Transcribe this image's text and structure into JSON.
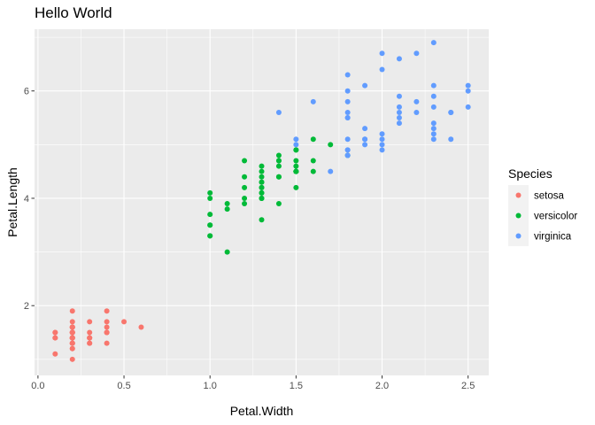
{
  "chart_data": {
    "type": "scatter",
    "title": "Hello World",
    "xlabel": "Petal.Width",
    "ylabel": "Petal.Length",
    "xlim": [
      -0.02,
      2.62
    ],
    "ylim": [
      0.7,
      7.15
    ],
    "x_ticks": [
      0.0,
      0.5,
      1.0,
      1.5,
      2.0,
      2.5
    ],
    "x_tick_labels": [
      "0.0",
      "0.5",
      "1.0",
      "1.5",
      "2.0",
      "2.5"
    ],
    "y_ticks": [
      2,
      4,
      6
    ],
    "y_tick_labels": [
      "2",
      "4",
      "6"
    ],
    "grid": true,
    "panel_background": "#ebebeb",
    "legend": {
      "title": "Species",
      "position": "right"
    },
    "series": [
      {
        "name": "setosa",
        "color": "#F8766D",
        "points": [
          [
            0.2,
            1.4
          ],
          [
            0.2,
            1.4
          ],
          [
            0.2,
            1.3
          ],
          [
            0.2,
            1.5
          ],
          [
            0.2,
            1.4
          ],
          [
            0.4,
            1.7
          ],
          [
            0.3,
            1.4
          ],
          [
            0.2,
            1.5
          ],
          [
            0.2,
            1.4
          ],
          [
            0.1,
            1.5
          ],
          [
            0.2,
            1.5
          ],
          [
            0.2,
            1.6
          ],
          [
            0.1,
            1.4
          ],
          [
            0.1,
            1.1
          ],
          [
            0.2,
            1.2
          ],
          [
            0.4,
            1.5
          ],
          [
            0.4,
            1.3
          ],
          [
            0.3,
            1.4
          ],
          [
            0.3,
            1.7
          ],
          [
            0.3,
            1.5
          ],
          [
            0.2,
            1.7
          ],
          [
            0.4,
            1.5
          ],
          [
            0.2,
            1.0
          ],
          [
            0.5,
            1.7
          ],
          [
            0.2,
            1.9
          ],
          [
            0.2,
            1.6
          ],
          [
            0.4,
            1.6
          ],
          [
            0.2,
            1.5
          ],
          [
            0.2,
            1.4
          ],
          [
            0.2,
            1.6
          ],
          [
            0.2,
            1.6
          ],
          [
            0.4,
            1.5
          ],
          [
            0.1,
            1.5
          ],
          [
            0.2,
            1.4
          ],
          [
            0.2,
            1.5
          ],
          [
            0.2,
            1.2
          ],
          [
            0.2,
            1.3
          ],
          [
            0.1,
            1.4
          ],
          [
            0.2,
            1.3
          ],
          [
            0.2,
            1.5
          ],
          [
            0.3,
            1.3
          ],
          [
            0.3,
            1.3
          ],
          [
            0.2,
            1.3
          ],
          [
            0.6,
            1.6
          ],
          [
            0.4,
            1.9
          ],
          [
            0.3,
            1.4
          ],
          [
            0.2,
            1.6
          ],
          [
            0.2,
            1.4
          ],
          [
            0.2,
            1.5
          ],
          [
            0.2,
            1.4
          ]
        ]
      },
      {
        "name": "versicolor",
        "color": "#00BA38",
        "points": [
          [
            1.4,
            4.7
          ],
          [
            1.5,
            4.5
          ],
          [
            1.5,
            4.9
          ],
          [
            1.3,
            4.0
          ],
          [
            1.5,
            4.6
          ],
          [
            1.3,
            4.5
          ],
          [
            1.6,
            4.7
          ],
          [
            1.0,
            3.3
          ],
          [
            1.3,
            4.6
          ],
          [
            1.4,
            3.9
          ],
          [
            1.0,
            3.5
          ],
          [
            1.5,
            4.2
          ],
          [
            1.0,
            4.0
          ],
          [
            1.4,
            4.7
          ],
          [
            1.3,
            3.6
          ],
          [
            1.4,
            4.4
          ],
          [
            1.5,
            4.5
          ],
          [
            1.0,
            4.1
          ],
          [
            1.5,
            4.5
          ],
          [
            1.1,
            3.9
          ],
          [
            1.8,
            4.8
          ],
          [
            1.3,
            4.0
          ],
          [
            1.5,
            4.9
          ],
          [
            1.2,
            4.7
          ],
          [
            1.3,
            4.3
          ],
          [
            1.4,
            4.4
          ],
          [
            1.4,
            4.8
          ],
          [
            1.7,
            5.0
          ],
          [
            1.5,
            4.5
          ],
          [
            1.0,
            3.5
          ],
          [
            1.1,
            3.8
          ],
          [
            1.0,
            3.7
          ],
          [
            1.2,
            3.9
          ],
          [
            1.6,
            5.1
          ],
          [
            1.5,
            4.5
          ],
          [
            1.6,
            4.5
          ],
          [
            1.5,
            4.7
          ],
          [
            1.3,
            4.4
          ],
          [
            1.3,
            4.1
          ],
          [
            1.3,
            4.0
          ],
          [
            1.2,
            4.4
          ],
          [
            1.4,
            4.6
          ],
          [
            1.2,
            4.0
          ],
          [
            1.0,
            3.3
          ],
          [
            1.3,
            4.2
          ],
          [
            1.2,
            4.2
          ],
          [
            1.3,
            4.2
          ],
          [
            1.3,
            4.3
          ],
          [
            1.1,
            3.0
          ],
          [
            1.3,
            4.1
          ]
        ]
      },
      {
        "name": "virginica",
        "color": "#619CFF",
        "points": [
          [
            2.5,
            6.0
          ],
          [
            1.9,
            5.1
          ],
          [
            2.1,
            5.9
          ],
          [
            1.8,
            5.6
          ],
          [
            2.2,
            5.8
          ],
          [
            2.1,
            6.6
          ],
          [
            1.7,
            4.5
          ],
          [
            1.8,
            6.3
          ],
          [
            1.8,
            5.8
          ],
          [
            2.5,
            6.1
          ],
          [
            2.0,
            5.1
          ],
          [
            1.9,
            5.3
          ],
          [
            2.1,
            5.5
          ],
          [
            2.0,
            5.0
          ],
          [
            2.4,
            5.1
          ],
          [
            2.3,
            5.3
          ],
          [
            1.8,
            5.5
          ],
          [
            2.2,
            6.7
          ],
          [
            2.3,
            6.9
          ],
          [
            1.5,
            5.0
          ],
          [
            2.3,
            5.7
          ],
          [
            2.0,
            4.9
          ],
          [
            2.0,
            6.7
          ],
          [
            1.8,
            4.9
          ],
          [
            2.1,
            5.7
          ],
          [
            1.8,
            6.0
          ],
          [
            1.8,
            4.8
          ],
          [
            1.8,
            4.9
          ],
          [
            2.1,
            5.6
          ],
          [
            1.6,
            5.8
          ],
          [
            1.9,
            6.1
          ],
          [
            2.0,
            6.4
          ],
          [
            2.2,
            5.6
          ],
          [
            1.5,
            5.1
          ],
          [
            1.4,
            5.6
          ],
          [
            2.3,
            6.1
          ],
          [
            2.4,
            5.6
          ],
          [
            1.8,
            5.5
          ],
          [
            1.8,
            4.8
          ],
          [
            2.1,
            5.4
          ],
          [
            2.4,
            5.6
          ],
          [
            2.3,
            5.1
          ],
          [
            1.9,
            5.1
          ],
          [
            2.3,
            5.9
          ],
          [
            2.5,
            5.7
          ],
          [
            2.3,
            5.2
          ],
          [
            1.9,
            5.0
          ],
          [
            2.0,
            5.2
          ],
          [
            2.3,
            5.4
          ],
          [
            1.8,
            5.1
          ]
        ]
      }
    ]
  }
}
